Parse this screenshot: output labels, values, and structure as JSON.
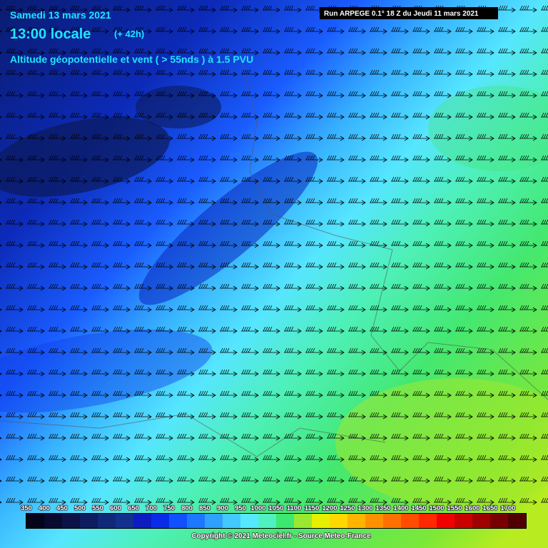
{
  "header": {
    "date": "Samedi 13 mars 2021",
    "time": "13:00 locale",
    "lead": "(+ 42h)",
    "title": "Altitude géopotentielle et vent ( > 55nds ) à 1.5 PVU",
    "run": "Run ARPEGE 0.1° 18 Z du Jeudi 11 mars 2021"
  },
  "legend": {
    "labels": [
      350,
      400,
      450,
      500,
      550,
      600,
      650,
      700,
      750,
      800,
      850,
      900,
      950,
      1000,
      1050,
      1100,
      1150,
      1200,
      1250,
      1300,
      1350,
      1400,
      1450,
      1500,
      1550,
      1600,
      1650,
      1700
    ],
    "colors": [
      "#04041a",
      "#080a30",
      "#0c1248",
      "#0e1c60",
      "#102878",
      "#12308e",
      "#0c1cc0",
      "#0a2ce8",
      "#1050ff",
      "#1c78ff",
      "#30a0ff",
      "#44c8ff",
      "#56e8ff",
      "#50f0c0",
      "#3ce870",
      "#9ae830",
      "#e6f000",
      "#ffd800",
      "#ffb400",
      "#ff9000",
      "#ff7000",
      "#ff4c00",
      "#ff2800",
      "#f00000",
      "#c80000",
      "#a00000",
      "#780000",
      "#500000"
    ]
  },
  "footer": {
    "copyright": "Copyright © 2021 Meteociel.fr - Source Meteo-France"
  }
}
